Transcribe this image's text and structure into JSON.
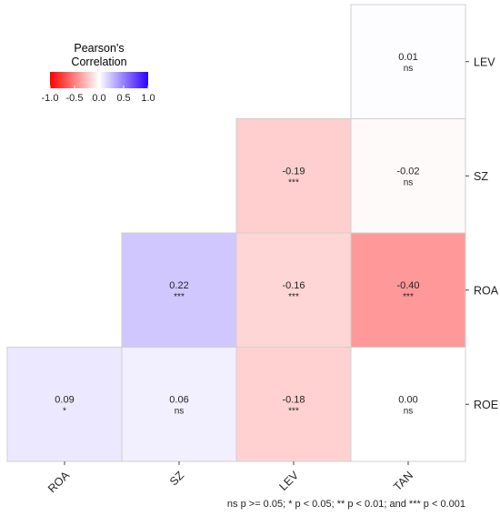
{
  "chart_data": {
    "type": "heatmap",
    "legend": {
      "title_lines": [
        "Pearson's",
        "Correlation"
      ],
      "ticks": [
        "-1.0",
        "-0.5",
        "0.0",
        "0.5",
        "1.0"
      ],
      "range": [
        -1,
        1
      ],
      "low_color": "#ff0000",
      "mid_color": "#ffffff",
      "high_color": "#2c00ff"
    },
    "columns": [
      "ROA",
      "SZ",
      "LEV",
      "TAN"
    ],
    "rows": [
      "LEV",
      "SZ",
      "ROA",
      "ROE"
    ],
    "cells": [
      {
        "row": "LEV",
        "col": "TAN",
        "value": 0.01,
        "label": "0.01",
        "sig": "ns"
      },
      {
        "row": "SZ",
        "col": "LEV",
        "value": -0.19,
        "label": "-0.19",
        "sig": "***"
      },
      {
        "row": "SZ",
        "col": "TAN",
        "value": -0.02,
        "label": "-0.02",
        "sig": "ns"
      },
      {
        "row": "ROA",
        "col": "SZ",
        "value": 0.22,
        "label": "0.22",
        "sig": "***"
      },
      {
        "row": "ROA",
        "col": "LEV",
        "value": -0.16,
        "label": "-0.16",
        "sig": "***"
      },
      {
        "row": "ROA",
        "col": "TAN",
        "value": -0.4,
        "label": "-0.40",
        "sig": "***"
      },
      {
        "row": "ROE",
        "col": "ROA",
        "value": 0.09,
        "label": "0.09",
        "sig": "*"
      },
      {
        "row": "ROE",
        "col": "SZ",
        "value": 0.06,
        "label": "0.06",
        "sig": "ns"
      },
      {
        "row": "ROE",
        "col": "LEV",
        "value": -0.18,
        "label": "-0.18",
        "sig": "***"
      },
      {
        "row": "ROE",
        "col": "TAN",
        "value": 0.0,
        "label": "0.00",
        "sig": "ns"
      }
    ],
    "caption": "ns p >= 0.05; * p < 0.05; ** p < 0.01; and *** p < 0.001"
  }
}
